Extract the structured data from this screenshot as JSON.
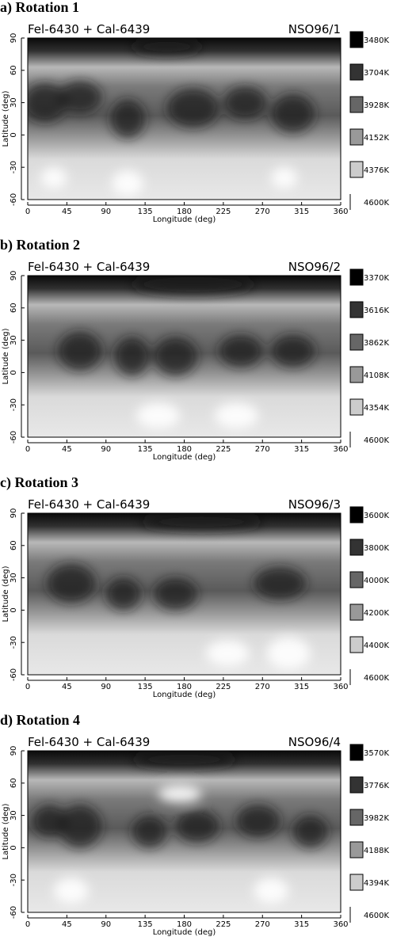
{
  "chart_data": [
    {
      "type": "heatmap",
      "title": "a) Rotation 1",
      "left_label": "Fel-6430 + Cal-6439",
      "right_label": "NSO96/1",
      "xlabel": "Longitude (deg)",
      "ylabel": "Latitude (deg)",
      "xlim": [
        0,
        360
      ],
      "ylim": [
        -60,
        90
      ],
      "xticks": [
        0,
        45,
        90,
        135,
        180,
        225,
        270,
        315,
        360
      ],
      "yticks": [
        90,
        60,
        30,
        0,
        -30,
        -60
      ],
      "legend": [
        "3480K",
        "3704K",
        "3928K",
        "4152K",
        "4376K",
        "4600K"
      ],
      "temp_range": [
        3480,
        4600
      ],
      "dark_spots": [
        {
          "lon": 160,
          "lat": 82,
          "rx": 40,
          "ry": 8
        },
        {
          "lon": 20,
          "lat": 30,
          "rx": 25,
          "ry": 18
        },
        {
          "lon": 60,
          "lat": 35,
          "rx": 25,
          "ry": 15
        },
        {
          "lon": 115,
          "lat": 15,
          "rx": 20,
          "ry": 18
        },
        {
          "lon": 190,
          "lat": 25,
          "rx": 30,
          "ry": 18
        },
        {
          "lon": 250,
          "lat": 30,
          "rx": 25,
          "ry": 15
        },
        {
          "lon": 305,
          "lat": 20,
          "rx": 25,
          "ry": 18
        }
      ],
      "bright_spots": [
        {
          "lon": 115,
          "lat": -45,
          "rx": 18,
          "ry": 12
        },
        {
          "lon": 295,
          "lat": -40,
          "rx": 15,
          "ry": 10
        },
        {
          "lon": 30,
          "lat": -40,
          "rx": 15,
          "ry": 10
        }
      ]
    },
    {
      "type": "heatmap",
      "title": "b) Rotation 2",
      "left_label": "Fel-6430 + Cal-6439",
      "right_label": "NSO96/2",
      "xlabel": "Longitude (deg)",
      "ylabel": "Latitude (deg)",
      "xlim": [
        0,
        360
      ],
      "ylim": [
        -60,
        90
      ],
      "xticks": [
        0,
        45,
        90,
        135,
        180,
        225,
        270,
        315,
        360
      ],
      "yticks": [
        90,
        60,
        30,
        0,
        -30,
        -60
      ],
      "legend": [
        "3370K",
        "3616K",
        "3862K",
        "4108K",
        "4354K",
        "4600K"
      ],
      "temp_range": [
        3370,
        4600
      ],
      "dark_spots": [
        {
          "lon": 190,
          "lat": 82,
          "rx": 70,
          "ry": 10
        },
        {
          "lon": 60,
          "lat": 20,
          "rx": 25,
          "ry": 18
        },
        {
          "lon": 120,
          "lat": 15,
          "rx": 20,
          "ry": 18
        },
        {
          "lon": 170,
          "lat": 15,
          "rx": 25,
          "ry": 18
        },
        {
          "lon": 245,
          "lat": 20,
          "rx": 25,
          "ry": 15
        },
        {
          "lon": 305,
          "lat": 20,
          "rx": 25,
          "ry": 15
        }
      ],
      "bright_spots": [
        {
          "lon": 150,
          "lat": -40,
          "rx": 25,
          "ry": 12
        },
        {
          "lon": 240,
          "lat": -40,
          "rx": 25,
          "ry": 12
        }
      ]
    },
    {
      "type": "heatmap",
      "title": "c) Rotation 3",
      "left_label": "Fel-6430 + Cal-6439",
      "right_label": "NSO96/3",
      "xlabel": "Longitude (deg)",
      "ylabel": "Latitude (deg)",
      "xlim": [
        0,
        360
      ],
      "ylim": [
        -60,
        90
      ],
      "xticks": [
        0,
        45,
        90,
        135,
        180,
        225,
        270,
        315,
        360
      ],
      "yticks": [
        90,
        60,
        30,
        0,
        -30,
        -60
      ],
      "legend": [
        "3600K",
        "3800K",
        "4000K",
        "4200K",
        "4400K",
        "4600K"
      ],
      "temp_range": [
        3600,
        4600
      ],
      "dark_spots": [
        {
          "lon": 200,
          "lat": 82,
          "rx": 70,
          "ry": 8
        },
        {
          "lon": 50,
          "lat": 25,
          "rx": 28,
          "ry": 18
        },
        {
          "lon": 110,
          "lat": 15,
          "rx": 20,
          "ry": 15
        },
        {
          "lon": 170,
          "lat": 15,
          "rx": 25,
          "ry": 15
        },
        {
          "lon": 290,
          "lat": 25,
          "rx": 30,
          "ry": 15
        }
      ],
      "bright_spots": [
        {
          "lon": 300,
          "lat": -40,
          "rx": 25,
          "ry": 15
        },
        {
          "lon": 230,
          "lat": -40,
          "rx": 25,
          "ry": 12
        }
      ]
    },
    {
      "type": "heatmap",
      "title": "d) Rotation 4",
      "left_label": "Fel-6430 + Cal-6439",
      "right_label": "NSO96/4",
      "xlabel": "Longitude (deg)",
      "ylabel": "Latitude (deg)",
      "xlim": [
        0,
        360
      ],
      "ylim": [
        -60,
        90
      ],
      "xticks": [
        0,
        45,
        90,
        135,
        180,
        225,
        270,
        315,
        360
      ],
      "yticks": [
        90,
        60,
        30,
        0,
        -30,
        -60
      ],
      "legend": [
        "3570K",
        "3776K",
        "3982K",
        "4188K",
        "4394K",
        "4600K"
      ],
      "temp_range": [
        3570,
        4600
      ],
      "dark_spots": [
        {
          "lon": 180,
          "lat": 82,
          "rx": 60,
          "ry": 8
        },
        {
          "lon": 25,
          "lat": 25,
          "rx": 20,
          "ry": 15
        },
        {
          "lon": 60,
          "lat": 20,
          "rx": 25,
          "ry": 20
        },
        {
          "lon": 140,
          "lat": 15,
          "rx": 20,
          "ry": 15
        },
        {
          "lon": 195,
          "lat": 20,
          "rx": 25,
          "ry": 15
        },
        {
          "lon": 265,
          "lat": 25,
          "rx": 25,
          "ry": 15
        },
        {
          "lon": 325,
          "lat": 15,
          "rx": 20,
          "ry": 15
        }
      ],
      "bright_spots": [
        {
          "lon": 50,
          "lat": -40,
          "rx": 20,
          "ry": 12
        },
        {
          "lon": 280,
          "lat": -40,
          "rx": 20,
          "ry": 12
        },
        {
          "lon": 175,
          "lat": 50,
          "rx": 25,
          "ry": 8
        }
      ]
    }
  ]
}
